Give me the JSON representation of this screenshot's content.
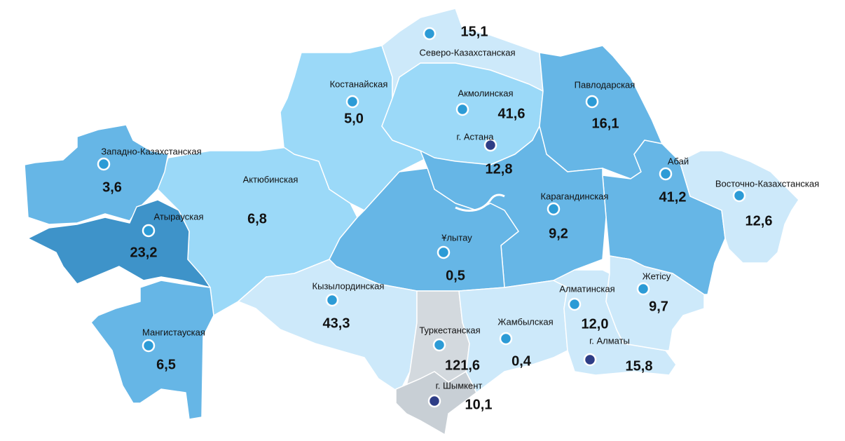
{
  "regions": [
    {
      "name": "Северо-Казахстанская",
      "value": "15,1"
    },
    {
      "name": "Костанайская",
      "value": "5,0"
    },
    {
      "name": "Акмолинская",
      "value": "41,6"
    },
    {
      "name": "г. Астана",
      "value": "12,8"
    },
    {
      "name": "Павлодарская",
      "value": "16,1"
    },
    {
      "name": "Западно-Казахстанская",
      "value": "3,6"
    },
    {
      "name": "Актюбинская",
      "value": "6,8"
    },
    {
      "name": "Абай",
      "value": "41,2"
    },
    {
      "name": "Восточно-Казахстанская",
      "value": "12,6"
    },
    {
      "name": "Атырауская",
      "value": "23,2"
    },
    {
      "name": "Карагандинская",
      "value": "9,2"
    },
    {
      "name": "Ұлытау",
      "value": "0,5"
    },
    {
      "name": "Кызылординская",
      "value": "43,3"
    },
    {
      "name": "Жетісу",
      "value": "9,7"
    },
    {
      "name": "Алматинская",
      "value": "12,0"
    },
    {
      "name": "Мангистауская",
      "value": "6,5"
    },
    {
      "name": "Туркестанская",
      "value": "121,6"
    },
    {
      "name": "Жамбылская",
      "value": "0,4"
    },
    {
      "name": "г. Алматы",
      "value": "15,8"
    },
    {
      "name": "г. Шымкент",
      "value": "10,1"
    }
  ]
}
